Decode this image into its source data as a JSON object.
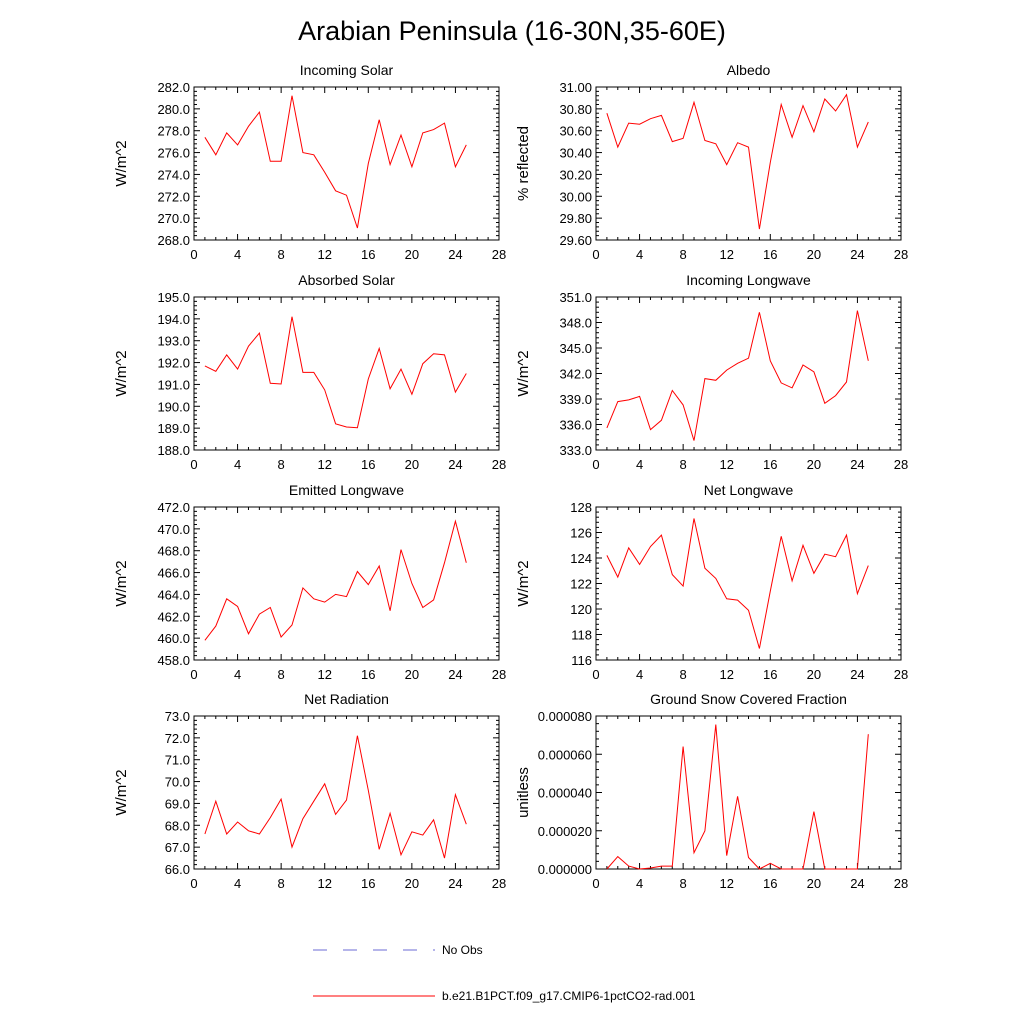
{
  "title": "Arabian Peninsula (16-30N,35-60E)",
  "colors": {
    "series": "#ff0000",
    "obs": "#6b6bd6",
    "axis": "#000000"
  },
  "legend": {
    "obs_label": "No Obs",
    "model_label": "b.e21.B1PCT.f09_g17.CMIP6-1pctCO2-rad.001"
  },
  "chart_data": [
    {
      "type": "line",
      "title": "Incoming Solar",
      "ylabel": "W/m^2",
      "xlim": [
        0,
        28
      ],
      "xticks": [
        "0",
        "4",
        "8",
        "12",
        "16",
        "20",
        "24",
        "28"
      ],
      "ylim": [
        268,
        282
      ],
      "yticks": [
        "268.0",
        "270.0",
        "272.0",
        "274.0",
        "276.0",
        "278.0",
        "280.0",
        "282.0"
      ],
      "x": [
        1,
        2,
        3,
        4,
        5,
        6,
        7,
        8,
        9,
        10,
        11,
        12,
        13,
        14,
        15,
        16,
        17,
        18,
        19,
        20,
        21,
        22,
        23,
        24,
        25
      ],
      "series": [
        {
          "values": [
            277.4,
            275.8,
            277.8,
            276.7,
            278.4,
            279.7,
            275.2,
            275.2,
            281.2,
            276.0,
            275.8,
            274.2,
            272.5,
            272.1,
            269.1,
            275.0,
            279.0,
            274.9,
            277.6,
            274.7,
            277.8,
            278.1,
            278.7,
            274.7,
            276.7
          ]
        }
      ]
    },
    {
      "type": "line",
      "title": "Albedo",
      "ylabel": "% reflected",
      "xlim": [
        0,
        28
      ],
      "xticks": [
        "0",
        "4",
        "8",
        "12",
        "16",
        "20",
        "24",
        "28"
      ],
      "ylim": [
        29.6,
        31.0
      ],
      "yticks": [
        "29.60",
        "29.80",
        "30.00",
        "30.20",
        "30.40",
        "30.60",
        "30.80",
        "31.00"
      ],
      "x": [
        1,
        2,
        3,
        4,
        5,
        6,
        7,
        8,
        9,
        10,
        11,
        12,
        13,
        14,
        15,
        16,
        17,
        18,
        19,
        20,
        21,
        22,
        23,
        24,
        25
      ],
      "series": [
        {
          "values": [
            30.76,
            30.45,
            30.67,
            30.66,
            30.71,
            30.74,
            30.5,
            30.53,
            30.86,
            30.51,
            30.48,
            30.29,
            30.49,
            30.45,
            29.7,
            30.31,
            30.84,
            30.54,
            30.83,
            30.59,
            30.89,
            30.78,
            30.93,
            30.45,
            30.68
          ]
        }
      ]
    },
    {
      "type": "line",
      "title": "Absorbed Solar",
      "ylabel": "W/m^2",
      "xlim": [
        0,
        28
      ],
      "xticks": [
        "0",
        "4",
        "8",
        "12",
        "16",
        "20",
        "24",
        "28"
      ],
      "ylim": [
        188,
        195
      ],
      "yticks": [
        "188.0",
        "189.0",
        "190.0",
        "191.0",
        "192.0",
        "193.0",
        "194.0",
        "195.0"
      ],
      "x": [
        1,
        2,
        3,
        4,
        5,
        6,
        7,
        8,
        9,
        10,
        11,
        12,
        13,
        14,
        15,
        16,
        17,
        18,
        19,
        20,
        21,
        22,
        23,
        24,
        25
      ],
      "series": [
        {
          "values": [
            191.85,
            191.6,
            192.35,
            191.7,
            192.75,
            193.35,
            191.05,
            191.02,
            194.1,
            191.55,
            191.55,
            190.75,
            189.2,
            189.05,
            189.02,
            191.25,
            192.65,
            190.8,
            191.7,
            190.55,
            191.95,
            192.4,
            192.35,
            190.65,
            191.5
          ]
        }
      ]
    },
    {
      "type": "line",
      "title": "Incoming Longwave",
      "ylabel": "W/m^2",
      "xlim": [
        0,
        28
      ],
      "xticks": [
        "0",
        "4",
        "8",
        "12",
        "16",
        "20",
        "24",
        "28"
      ],
      "ylim": [
        333,
        351
      ],
      "yticks": [
        "333.0",
        "336.0",
        "339.0",
        "342.0",
        "345.0",
        "348.0",
        "351.0"
      ],
      "x": [
        1,
        2,
        3,
        4,
        5,
        6,
        7,
        8,
        9,
        10,
        11,
        12,
        13,
        14,
        15,
        16,
        17,
        18,
        19,
        20,
        21,
        22,
        23,
        24,
        25
      ],
      "series": [
        {
          "values": [
            335.6,
            338.7,
            338.9,
            339.3,
            335.4,
            336.5,
            340.0,
            338.3,
            334.1,
            341.4,
            341.2,
            342.4,
            343.2,
            343.8,
            349.2,
            343.5,
            340.9,
            340.3,
            343.0,
            342.2,
            338.5,
            339.4,
            341.0,
            349.4,
            343.5
          ]
        }
      ]
    },
    {
      "type": "line",
      "title": "Emitted Longwave",
      "ylabel": "W/m^2",
      "xlim": [
        0,
        28
      ],
      "xticks": [
        "0",
        "4",
        "8",
        "12",
        "16",
        "20",
        "24",
        "28"
      ],
      "ylim": [
        458,
        472
      ],
      "yticks": [
        "458.0",
        "460.0",
        "462.0",
        "464.0",
        "466.0",
        "468.0",
        "470.0",
        "472.0"
      ],
      "x": [
        1,
        2,
        3,
        4,
        5,
        6,
        7,
        8,
        9,
        10,
        11,
        12,
        13,
        14,
        15,
        16,
        17,
        18,
        19,
        20,
        21,
        22,
        23,
        24,
        25
      ],
      "series": [
        {
          "values": [
            459.8,
            461.1,
            463.6,
            462.9,
            460.4,
            462.2,
            462.8,
            460.1,
            461.2,
            464.6,
            463.6,
            463.3,
            464.0,
            463.8,
            466.1,
            464.9,
            466.6,
            462.5,
            468.1,
            465.0,
            462.8,
            463.5,
            466.9,
            470.7,
            466.9
          ]
        }
      ]
    },
    {
      "type": "line",
      "title": "Net Longwave",
      "ylabel": "W/m^2",
      "xlim": [
        0,
        28
      ],
      "xticks": [
        "0",
        "4",
        "8",
        "12",
        "16",
        "20",
        "24",
        "28"
      ],
      "ylim": [
        116,
        128
      ],
      "yticks": [
        "116",
        "118",
        "120",
        "122",
        "124",
        "126",
        "128"
      ],
      "x": [
        1,
        2,
        3,
        4,
        5,
        6,
        7,
        8,
        9,
        10,
        11,
        12,
        13,
        14,
        15,
        16,
        17,
        18,
        19,
        20,
        21,
        22,
        23,
        24,
        25
      ],
      "series": [
        {
          "values": [
            124.2,
            122.5,
            124.8,
            123.5,
            124.9,
            125.8,
            122.7,
            121.8,
            127.1,
            123.2,
            122.4,
            120.8,
            120.7,
            119.9,
            116.9,
            121.4,
            125.7,
            122.2,
            125.0,
            122.8,
            124.3,
            124.1,
            125.8,
            121.2,
            123.4
          ]
        }
      ]
    },
    {
      "type": "line",
      "title": "Net Radiation",
      "ylabel": "W/m^2",
      "xlim": [
        0,
        28
      ],
      "xticks": [
        "0",
        "4",
        "8",
        "12",
        "16",
        "20",
        "24",
        "28"
      ],
      "ylim": [
        66,
        73
      ],
      "yticks": [
        "66.0",
        "67.0",
        "68.0",
        "69.0",
        "70.0",
        "71.0",
        "72.0",
        "73.0"
      ],
      "x": [
        1,
        2,
        3,
        4,
        5,
        6,
        7,
        8,
        9,
        10,
        11,
        12,
        13,
        14,
        15,
        16,
        17,
        18,
        19,
        20,
        21,
        22,
        23,
        24,
        25
      ],
      "series": [
        {
          "values": [
            67.6,
            69.1,
            67.6,
            68.15,
            67.75,
            67.6,
            68.35,
            69.2,
            67.0,
            68.3,
            69.1,
            69.9,
            68.5,
            69.15,
            72.1,
            69.6,
            66.9,
            68.55,
            66.65,
            67.7,
            67.55,
            68.25,
            66.5,
            69.4,
            68.05
          ]
        }
      ]
    },
    {
      "type": "line",
      "title": "Ground Snow Covered Fraction",
      "ylabel": "unitless",
      "xlim": [
        0,
        28
      ],
      "xticks": [
        "0",
        "4",
        "8",
        "12",
        "16",
        "20",
        "24",
        "28"
      ],
      "ylim": [
        0,
        8e-05
      ],
      "yticks": [
        "0.000000",
        "0.000020",
        "0.000040",
        "0.000060",
        "0.000080"
      ],
      "x": [
        1,
        2,
        3,
        4,
        5,
        6,
        7,
        8,
        9,
        10,
        11,
        12,
        13,
        14,
        15,
        16,
        17,
        18,
        19,
        20,
        21,
        22,
        23,
        24,
        25
      ],
      "series": [
        {
          "values": [
            0.0,
            6.5e-06,
            1.5e-06,
            0.0,
            5e-07,
            1.5e-06,
            1.5e-06,
            6.4e-05,
            8.5e-06,
            2e-05,
            7.55e-05,
            7e-06,
            3.8e-05,
            6e-06,
            0.0,
            3e-06,
            0.0,
            0.0,
            0.0,
            3e-05,
            0.0,
            0.0,
            0.0,
            0.0,
            7.05e-05
          ]
        }
      ]
    }
  ]
}
